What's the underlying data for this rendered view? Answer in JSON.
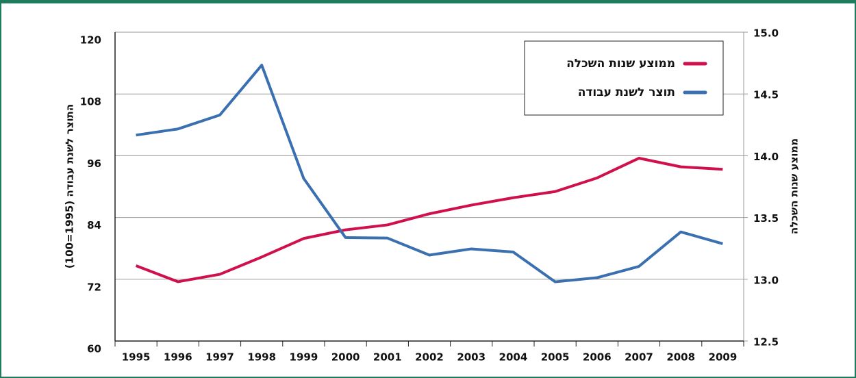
{
  "chart_data": {
    "type": "line",
    "y_label": "התוצר לשנת עבודה (1995=100)",
    "y2_label": "ממוצע שנות השכלה",
    "categories": [
      "1995",
      "1996",
      "1997",
      "1998",
      "1999",
      "2000",
      "2001",
      "2002",
      "2003",
      "2004",
      "2005",
      "2006",
      "2007",
      "2008",
      "2009"
    ],
    "series": [
      {
        "name": "ממוצע שנות השכלה",
        "color": "#d0104c",
        "axis": "y2",
        "values": [
          13.11,
          12.98,
          13.04,
          13.18,
          13.33,
          13.4,
          13.44,
          13.53,
          13.6,
          13.66,
          13.71,
          13.82,
          13.98,
          13.91,
          13.89
        ]
      },
      {
        "name": "תוצר לשנת עבודה",
        "color": "#3a6fb0",
        "values": [
          100,
          101.2,
          103.9,
          113.6,
          91.6,
          80.1,
          80,
          76.7,
          77.9,
          77.3,
          71.5,
          72.3,
          74.5,
          81.2,
          78.9
        ]
      }
    ],
    "ylim": [
      60,
      120
    ],
    "yticks": [
      60,
      72,
      84,
      96,
      108,
      120
    ],
    "y2lim": [
      12.5,
      15
    ],
    "y2ticks": [
      12.5,
      {
        "value": 13,
        "label": "13.0"
      },
      13.5,
      {
        "value": 14,
        "label": "14.0"
      },
      14.5,
      {
        "value": 15,
        "label": "15.0"
      }
    ],
    "grid": true,
    "legend": "top-right"
  }
}
